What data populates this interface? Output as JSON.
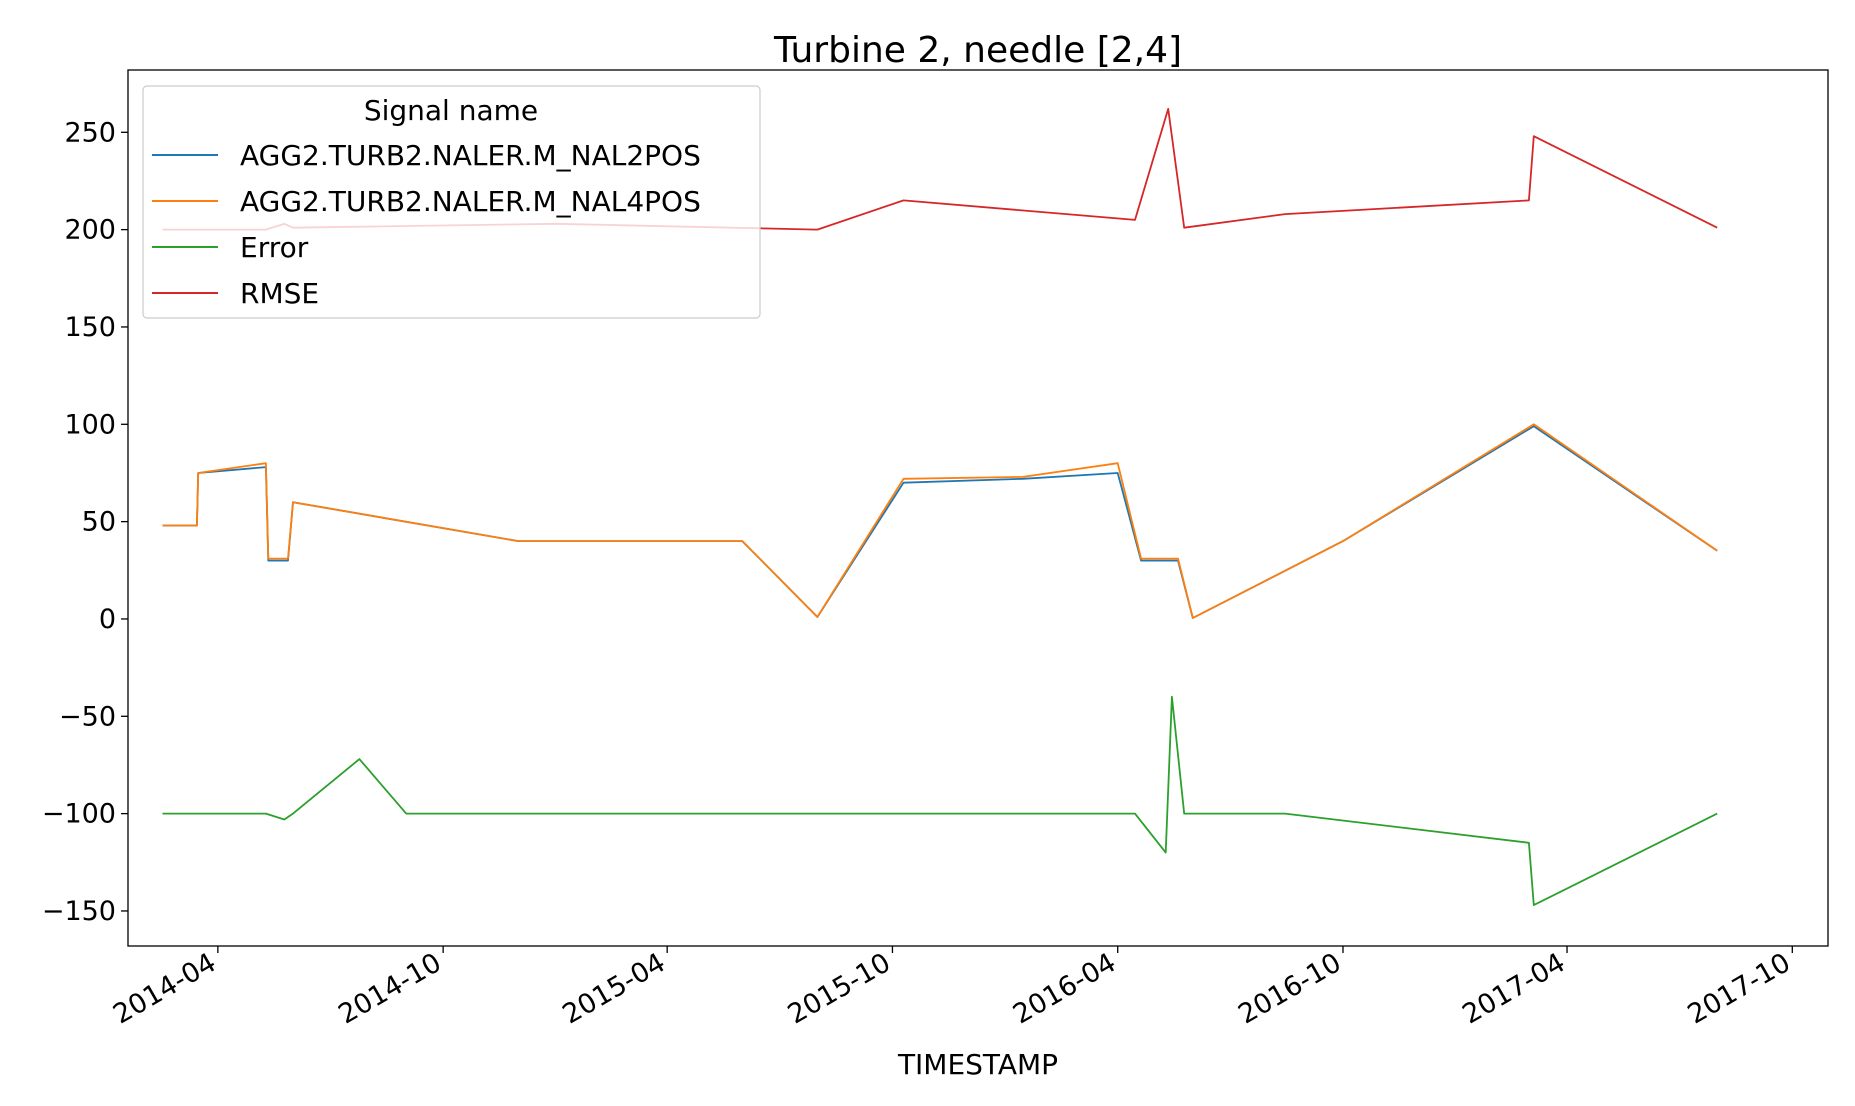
{
  "chart_data": {
    "type": "line",
    "title": "Turbine 2, needle [2,4]",
    "xlabel": "TIMESTAMP",
    "ylabel": "",
    "xlim": [
      "2014-01-18",
      "2017-10-30"
    ],
    "ylim": [
      -168,
      282
    ],
    "x_ticks": [
      "2014-04",
      "2014-10",
      "2015-04",
      "2015-10",
      "2016-04",
      "2016-10",
      "2017-04",
      "2017-10"
    ],
    "y_ticks": [
      250,
      200,
      150,
      100,
      50,
      0,
      -50,
      -100,
      -150
    ],
    "y_tick_labels": [
      "250",
      "200",
      "150",
      "100",
      "50",
      "0",
      "−50",
      "−100",
      "−150"
    ],
    "grid": false,
    "legend": {
      "title": "Signal name",
      "location": "top-left"
    },
    "series": [
      {
        "name": "AGG2.TURB2.NALER.M_NAL2POS",
        "color": "#1f77b4",
        "x": [
          "2014-02-15",
          "2014-03-15",
          "2014-03-16",
          "2014-05-10",
          "2014-05-12",
          "2014-05-28",
          "2014-06-01",
          "2014-12-01",
          "2015-06-01",
          "2015-08-01",
          "2015-10-10",
          "2016-01-15",
          "2016-04-01",
          "2016-04-20",
          "2016-05-20",
          "2016-06-01",
          "2016-10-01",
          "2017-03-05",
          "2017-08-01"
        ],
        "values": [
          48,
          48,
          75,
          78,
          30,
          30,
          60,
          40,
          40,
          1,
          70,
          72,
          75,
          30,
          30,
          0.5,
          40,
          99,
          35
        ]
      },
      {
        "name": "AGG2.TURB2.NALER.M_NAL4POS",
        "color": "#ff7f0e",
        "x": [
          "2014-02-15",
          "2014-03-15",
          "2014-03-16",
          "2014-05-10",
          "2014-05-12",
          "2014-05-28",
          "2014-06-01",
          "2014-12-01",
          "2015-06-01",
          "2015-08-01",
          "2015-10-10",
          "2016-01-15",
          "2016-04-01",
          "2016-04-20",
          "2016-05-20",
          "2016-06-01",
          "2016-10-01",
          "2017-03-05",
          "2017-08-01"
        ],
        "values": [
          48,
          48,
          75,
          80,
          31,
          31,
          60,
          40,
          40,
          1,
          72,
          73,
          80,
          31,
          31,
          0.5,
          40,
          100,
          35
        ]
      },
      {
        "name": "Error",
        "color": "#2ca02c",
        "x": [
          "2014-02-15",
          "2014-03-15",
          "2014-05-10",
          "2014-05-25",
          "2014-06-01",
          "2014-07-25",
          "2014-09-01",
          "2015-01-01",
          "2015-08-01",
          "2015-10-10",
          "2016-04-15",
          "2016-05-10",
          "2016-05-15",
          "2016-05-25",
          "2016-08-15",
          "2017-03-01",
          "2017-03-05",
          "2017-08-01"
        ],
        "values": [
          -100,
          -100,
          -100,
          -103,
          -100,
          -72,
          -100,
          -100,
          -100,
          -100,
          -100,
          -120,
          -40,
          -100,
          -100,
          -115,
          -147,
          -100
        ]
      },
      {
        "name": "RMSE",
        "color": "#d62728",
        "x": [
          "2014-02-15",
          "2014-05-10",
          "2014-05-25",
          "2014-06-01",
          "2015-01-01",
          "2015-08-01",
          "2015-10-10",
          "2016-04-15",
          "2016-05-12",
          "2016-05-25",
          "2016-08-15",
          "2017-03-01",
          "2017-03-05",
          "2017-08-01"
        ],
        "values": [
          200,
          200,
          203,
          201,
          203,
          200,
          215,
          205,
          262,
          201,
          208,
          215,
          248,
          201
        ]
      }
    ]
  }
}
